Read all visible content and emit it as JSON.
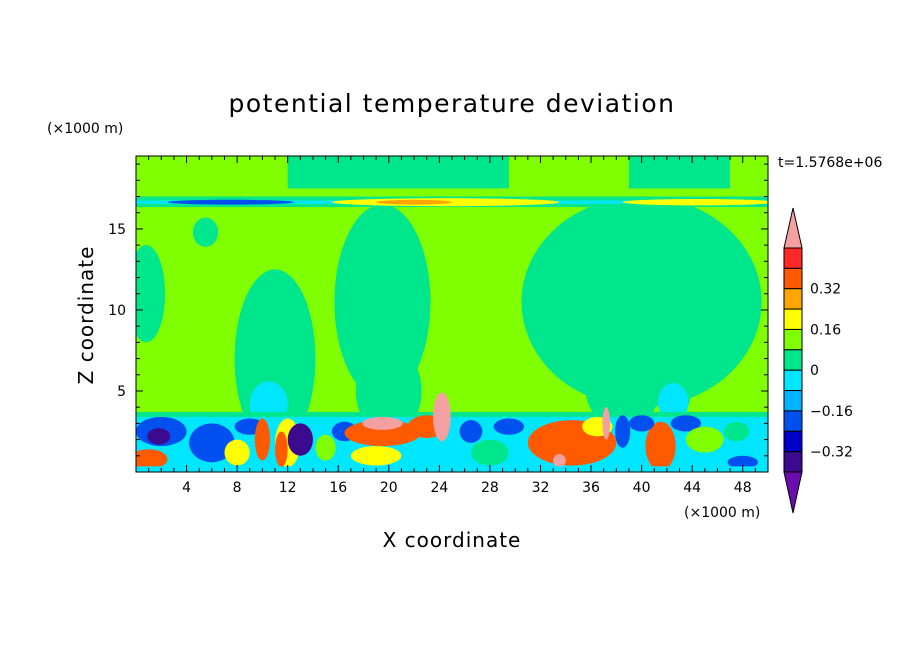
{
  "chart_data": {
    "type": "heatmap",
    "title": "potential temperature deviation",
    "xlabel": "X coordinate",
    "ylabel": "Z coordinate",
    "x_unit": "(×1000 m)",
    "y_unit": "(×1000 m)",
    "time_label": "t=1.5768e+06",
    "xlim": [
      0,
      50
    ],
    "ylim": [
      0,
      19.5
    ],
    "x_ticks": [
      4,
      8,
      12,
      16,
      20,
      24,
      28,
      32,
      36,
      40,
      44,
      48
    ],
    "y_ticks": [
      5,
      10,
      15
    ],
    "grid": false,
    "legend": "right",
    "colorbar": {
      "levels": [
        -0.48,
        -0.4,
        -0.32,
        -0.24,
        -0.16,
        -0.08,
        0,
        0.08,
        0.16,
        0.24,
        0.32,
        0.4
      ],
      "colors": [
        "#6a0dad",
        "#3b0a8f",
        "#0000c8",
        "#0050f0",
        "#00b4ff",
        "#00e6ff",
        "#00e68c",
        "#80ff00",
        "#ffff00",
        "#ffa500",
        "#ff5a00",
        "#ff2828",
        "#f5a0a0"
      ],
      "labeled_ticks": [
        {
          "value": 0.32,
          "label": "0.32"
        },
        {
          "value": 0.16,
          "label": "0.16"
        },
        {
          "value": 0,
          "label": "0"
        },
        {
          "value": -0.16,
          "label": "−0.16"
        },
        {
          "value": -0.32,
          "label": "−0.32"
        }
      ],
      "extend": "both"
    },
    "regions": [
      {
        "value": 0.0,
        "shape": "rect",
        "x": [
          0,
          50
        ],
        "z": [
          0,
          19.5
        ]
      },
      {
        "value": -0.04,
        "shape": "rect",
        "x": [
          12,
          29.5
        ],
        "z": [
          17.5,
          19.5
        ]
      },
      {
        "value": -0.04,
        "shape": "rect",
        "x": [
          39,
          47
        ],
        "z": [
          17.5,
          19.5
        ]
      },
      {
        "value": -0.04,
        "shape": "ellipse",
        "cx": 5.5,
        "cz": 14.8,
        "rx": 1.0,
        "rz": 0.9
      },
      {
        "value": -0.04,
        "shape": "ellipse",
        "cx": 19.5,
        "cz": 10.5,
        "rx": 3.8,
        "rz": 6.0
      },
      {
        "value": -0.04,
        "shape": "ellipse",
        "cx": 11.0,
        "cz": 7.0,
        "rx": 3.2,
        "rz": 5.5
      },
      {
        "value": -0.04,
        "shape": "ellipse",
        "cx": 20.0,
        "cz": 5.0,
        "rx": 2.6,
        "rz": 2.8
      },
      {
        "value": -0.04,
        "shape": "ellipse",
        "cx": 40.0,
        "cz": 10.5,
        "rx": 9.5,
        "rz": 6.5
      },
      {
        "value": -0.04,
        "shape": "ellipse",
        "cx": 38.5,
        "cz": 5.5,
        "rx": 3.0,
        "rz": 3.0
      },
      {
        "value": -0.04,
        "shape": "ellipse",
        "cx": 42.5,
        "cz": 5.0,
        "rx": 1.4,
        "rz": 1.8
      },
      {
        "value": -0.04,
        "shape": "ellipse",
        "cx": 0.8,
        "cz": 11.0,
        "rx": 1.5,
        "rz": 3.0
      },
      {
        "value": -0.04,
        "shape": "rect",
        "x": [
          0,
          50
        ],
        "z": [
          16.35,
          17.0
        ]
      },
      {
        "value": -0.12,
        "shape": "rect",
        "x": [
          0,
          50
        ],
        "z": [
          16.55,
          16.75
        ]
      },
      {
        "value": -0.28,
        "shape": "ellipse",
        "cx": 7.5,
        "cz": 16.65,
        "rx": 5.0,
        "rz": 0.15
      },
      {
        "value": 0.12,
        "shape": "ellipse",
        "cx": 24.5,
        "cz": 16.65,
        "rx": 9.0,
        "rz": 0.25
      },
      {
        "value": 0.2,
        "shape": "ellipse",
        "cx": 22.0,
        "cz": 16.65,
        "rx": 3.0,
        "rz": 0.15
      },
      {
        "value": 0.08,
        "shape": "ellipse",
        "cx": 44.5,
        "cz": 16.65,
        "rx": 6.0,
        "rz": 0.2
      },
      {
        "value": -0.12,
        "shape": "ellipse",
        "cx": 10.5,
        "cz": 4.2,
        "rx": 1.5,
        "rz": 1.4
      },
      {
        "value": -0.12,
        "shape": "ellipse",
        "cx": 42.5,
        "cz": 4.3,
        "rx": 1.2,
        "rz": 1.2
      },
      {
        "value": -0.04,
        "shape": "rect",
        "x": [
          0,
          50
        ],
        "z": [
          3.3,
          3.7
        ]
      },
      {
        "value": -0.12,
        "shape": "rect",
        "x": [
          0,
          50
        ],
        "z": [
          0,
          3.4
        ]
      },
      {
        "value": -0.28,
        "shape": "ellipse",
        "cx": 2.0,
        "cz": 2.5,
        "rx": 2.0,
        "rz": 0.9
      },
      {
        "value": -0.44,
        "shape": "ellipse",
        "cx": 1.8,
        "cz": 2.2,
        "rx": 0.9,
        "rz": 0.5
      },
      {
        "value": 0.28,
        "shape": "ellipse",
        "cx": 1.0,
        "cz": 0.8,
        "rx": 1.5,
        "rz": 0.6
      },
      {
        "value": -0.28,
        "shape": "ellipse",
        "cx": 6.0,
        "cz": 1.8,
        "rx": 1.8,
        "rz": 1.2
      },
      {
        "value": 0.08,
        "shape": "ellipse",
        "cx": 8.0,
        "cz": 1.2,
        "rx": 1.0,
        "rz": 0.8
      },
      {
        "value": -0.28,
        "shape": "ellipse",
        "cx": 9.0,
        "cz": 2.8,
        "rx": 1.2,
        "rz": 0.5
      },
      {
        "value": 0.28,
        "shape": "ellipse",
        "cx": 10.0,
        "cz": 2.0,
        "rx": 0.6,
        "rz": 1.3
      },
      {
        "value": 0.12,
        "shape": "ellipse",
        "cx": 12.0,
        "cz": 1.8,
        "rx": 1.0,
        "rz": 1.5
      },
      {
        "value": 0.28,
        "shape": "ellipse",
        "cx": 11.5,
        "cz": 1.4,
        "rx": 0.5,
        "rz": 1.1
      },
      {
        "value": -0.44,
        "shape": "ellipse",
        "cx": 13.0,
        "cz": 2.0,
        "rx": 1.0,
        "rz": 1.0
      },
      {
        "value": 0.04,
        "shape": "ellipse",
        "cx": 15.0,
        "cz": 1.5,
        "rx": 0.8,
        "rz": 0.8
      },
      {
        "value": -0.28,
        "shape": "ellipse",
        "cx": 16.5,
        "cz": 2.5,
        "rx": 1.0,
        "rz": 0.6
      },
      {
        "value": 0.28,
        "shape": "ellipse",
        "cx": 19.5,
        "cz": 2.4,
        "rx": 3.0,
        "rz": 0.8
      },
      {
        "value": 0.44,
        "shape": "ellipse",
        "cx": 19.5,
        "cz": 3.0,
        "rx": 1.6,
        "rz": 0.4
      },
      {
        "value": 0.12,
        "shape": "ellipse",
        "cx": 19.0,
        "cz": 1.0,
        "rx": 2.0,
        "rz": 0.6
      },
      {
        "value": 0.28,
        "shape": "ellipse",
        "cx": 23.0,
        "cz": 2.8,
        "rx": 1.5,
        "rz": 0.7
      },
      {
        "value": 0.44,
        "shape": "ellipse",
        "cx": 24.2,
        "cz": 3.4,
        "rx": 0.7,
        "rz": 1.5
      },
      {
        "value": -0.28,
        "shape": "ellipse",
        "cx": 26.5,
        "cz": 2.5,
        "rx": 0.9,
        "rz": 0.7
      },
      {
        "value": -0.04,
        "shape": "ellipse",
        "cx": 28.0,
        "cz": 1.2,
        "rx": 1.5,
        "rz": 0.8
      },
      {
        "value": -0.28,
        "shape": "ellipse",
        "cx": 29.5,
        "cz": 2.8,
        "rx": 1.2,
        "rz": 0.5
      },
      {
        "value": 0.28,
        "shape": "ellipse",
        "cx": 34.5,
        "cz": 1.8,
        "rx": 3.5,
        "rz": 1.4
      },
      {
        "value": 0.44,
        "shape": "ellipse",
        "cx": 33.5,
        "cz": 0.7,
        "rx": 0.5,
        "rz": 0.4
      },
      {
        "value": 0.12,
        "shape": "ellipse",
        "cx": 36.5,
        "cz": 2.8,
        "rx": 1.2,
        "rz": 0.6
      },
      {
        "value": 0.44,
        "shape": "ellipse",
        "cx": 37.2,
        "cz": 3.0,
        "rx": 0.3,
        "rz": 1.0
      },
      {
        "value": -0.28,
        "shape": "ellipse",
        "cx": 38.5,
        "cz": 2.5,
        "rx": 0.6,
        "rz": 1.0
      },
      {
        "value": 0.28,
        "shape": "ellipse",
        "cx": 41.5,
        "cz": 1.6,
        "rx": 1.2,
        "rz": 1.5
      },
      {
        "value": -0.28,
        "shape": "ellipse",
        "cx": 40.0,
        "cz": 3.0,
        "rx": 1.0,
        "rz": 0.5
      },
      {
        "value": -0.28,
        "shape": "ellipse",
        "cx": 43.5,
        "cz": 3.0,
        "rx": 1.2,
        "rz": 0.5
      },
      {
        "value": 0.04,
        "shape": "ellipse",
        "cx": 45.0,
        "cz": 2.0,
        "rx": 1.5,
        "rz": 0.8
      },
      {
        "value": -0.28,
        "shape": "ellipse",
        "cx": 48.0,
        "cz": 0.6,
        "rx": 1.2,
        "rz": 0.4
      },
      {
        "value": -0.04,
        "shape": "ellipse",
        "cx": 47.5,
        "cz": 2.5,
        "rx": 1.0,
        "rz": 0.6
      },
      {
        "value": -0.12,
        "shape": "rect",
        "x": [
          0,
          50
        ],
        "z": [
          0,
          0.35
        ]
      }
    ]
  }
}
